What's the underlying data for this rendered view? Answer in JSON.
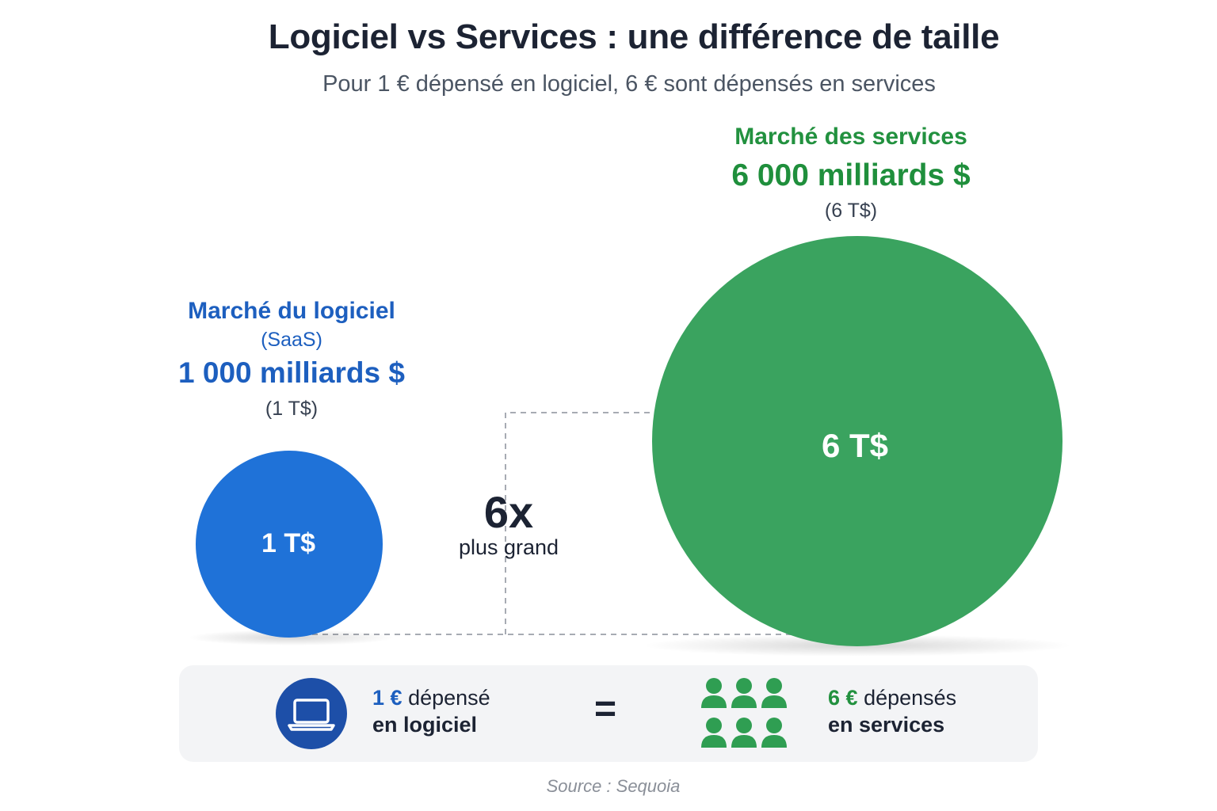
{
  "title": "Logiciel vs Services : une différence de taille",
  "subtitle": "Pour 1 € dépensé en logiciel, 6 € sont dépensés en services",
  "services": {
    "label": "Marché des services",
    "value": "6 000 milliards $",
    "abbr": "(6 T$)",
    "circle_label": "6 T$",
    "amount_tn": 6,
    "color": "#3aa35f"
  },
  "software": {
    "label": "Marché du logiciel",
    "sublabel": "(SaaS)",
    "value": "1 000 milliards $",
    "abbr": "(1 T$)",
    "circle_label": "1 T$",
    "amount_tn": 1,
    "color": "#1f72d8"
  },
  "comparison": {
    "ratio": "6x",
    "label": "plus grand"
  },
  "equation": {
    "software_amount": "1 €",
    "software_text": "dépensé",
    "software_line2": "en logiciel",
    "equals": "=",
    "services_amount": "6 €",
    "services_text": "dépensés",
    "services_line2": "en services",
    "software_icon": "laptop-icon",
    "services_icon": "people-group-icon",
    "people_color": "#2f9e52"
  },
  "source": "Source : Sequoia"
}
